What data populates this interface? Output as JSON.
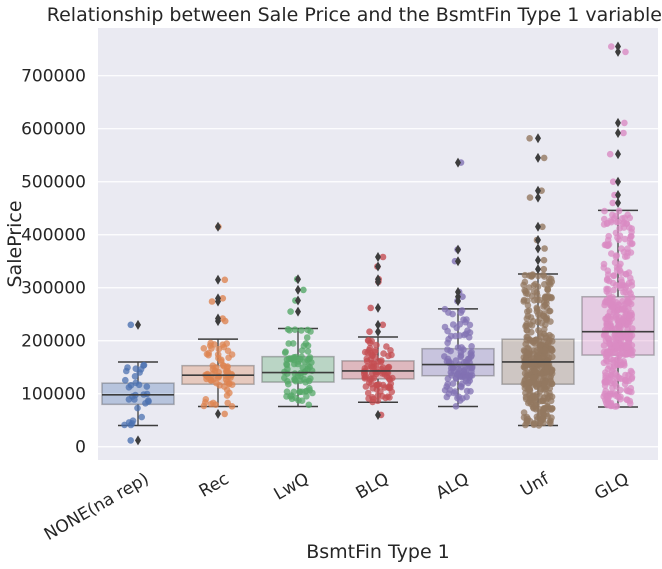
{
  "chart_data": {
    "type": "box-strip",
    "title": "Relationship between Sale Price and the BsmtFin Type 1 variable",
    "xlabel": "BsmtFin Type 1",
    "ylabel": "SalePrice",
    "ylim": [
      -25000,
      790000
    ],
    "yticks": [
      0,
      100000,
      200000,
      300000,
      400000,
      500000,
      600000,
      700000
    ],
    "ytick_labels": [
      "0",
      "100000",
      "200000",
      "300000",
      "400000",
      "500000",
      "600000",
      "700000"
    ],
    "grid": true,
    "categories": [
      "NONE(na rep)",
      "Rec",
      "LwQ",
      "BLQ",
      "ALQ",
      "Unf",
      "GLQ"
    ],
    "colors": [
      "#4c72b0",
      "#dd8452",
      "#55a868",
      "#c44e52",
      "#8172b3",
      "#937860",
      "#da8bc3"
    ],
    "boxes": [
      {
        "category": "NONE(na rep)",
        "q1": 80000,
        "median": 98000,
        "q3": 120000,
        "whisker_low": 40000,
        "whisker_high": 160000,
        "outliers": [
          12000,
          230000
        ]
      },
      {
        "category": "Rec",
        "q1": 118000,
        "median": 135000,
        "q3": 153000,
        "whisker_low": 76000,
        "whisker_high": 203000,
        "outliers": [
          62000,
          237000,
          242000,
          274000,
          280000,
          315000,
          415000
        ]
      },
      {
        "category": "LwQ",
        "q1": 122000,
        "median": 140000,
        "q3": 170000,
        "whisker_low": 76000,
        "whisker_high": 223000,
        "outliers": [
          255000,
          276000,
          296000,
          316000
        ]
      },
      {
        "category": "BLQ",
        "q1": 128000,
        "median": 143000,
        "q3": 162000,
        "whisker_low": 84000,
        "whisker_high": 207000,
        "outliers": [
          60000,
          217000,
          230000,
          262000,
          311000,
          316000,
          340000,
          358000
        ]
      },
      {
        "category": "ALQ",
        "q1": 134000,
        "median": 155000,
        "q3": 185000,
        "whisker_low": 76000,
        "whisker_high": 260000,
        "outliers": [
          275000,
          283000,
          292000,
          350000,
          372000,
          536000
        ]
      },
      {
        "category": "Unf",
        "q1": 118000,
        "median": 160000,
        "q3": 203000,
        "whisker_low": 40000,
        "whisker_high": 326000,
        "outliers": [
          335000,
          352000,
          374000,
          390000,
          415000,
          470000,
          483000,
          545000,
          582000
        ]
      },
      {
        "category": "GLQ",
        "q1": 173000,
        "median": 217000,
        "q3": 283000,
        "whisker_low": 75000,
        "whisker_high": 446000,
        "outliers": [
          460000,
          475000,
          500000,
          552000,
          592000,
          611000,
          745000,
          755000
        ]
      }
    ]
  }
}
